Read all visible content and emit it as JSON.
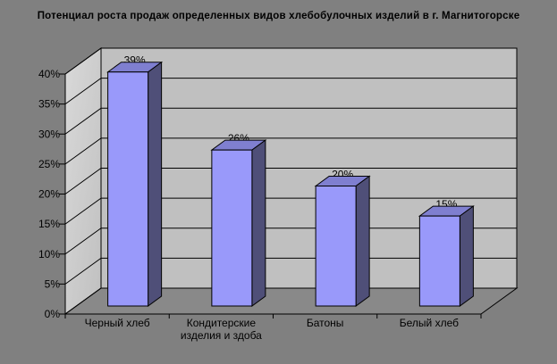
{
  "chart_data": {
    "type": "bar",
    "style": "3d-column",
    "title": "Потенциал роста продаж определенных видов хлебобулочных изделий в г. Магнитогорске",
    "categories": [
      "Черный хлеб",
      "Кондитерские изделия и здоба",
      "Батоны",
      "Белый хлеб"
    ],
    "category_label_lines": [
      [
        "Черный хлеб"
      ],
      [
        "Кондитерские",
        "изделия и здоба"
      ],
      [
        "Батоны"
      ],
      [
        "Белый хлеб"
      ]
    ],
    "values": [
      39,
      26,
      20,
      15
    ],
    "data_labels": [
      "39%",
      "26%",
      "20%",
      "15%"
    ],
    "xlabel": "",
    "ylabel": "",
    "ylim": [
      0,
      40
    ],
    "ytick_step": 5,
    "ytick_labels": [
      "0%",
      "5%",
      "10%",
      "15%",
      "20%",
      "25%",
      "30%",
      "35%",
      "40%"
    ],
    "grid": true,
    "legend": false,
    "colors": {
      "background": "#808080",
      "wall": "#C0C0C0",
      "wall_light": "#D9D9D9",
      "floor": "#898989",
      "bar_front": "#9999FA",
      "bar_top": "#7F7FD0",
      "bar_side": "#4F4F78",
      "line": "#000000",
      "text": "#000000"
    }
  }
}
